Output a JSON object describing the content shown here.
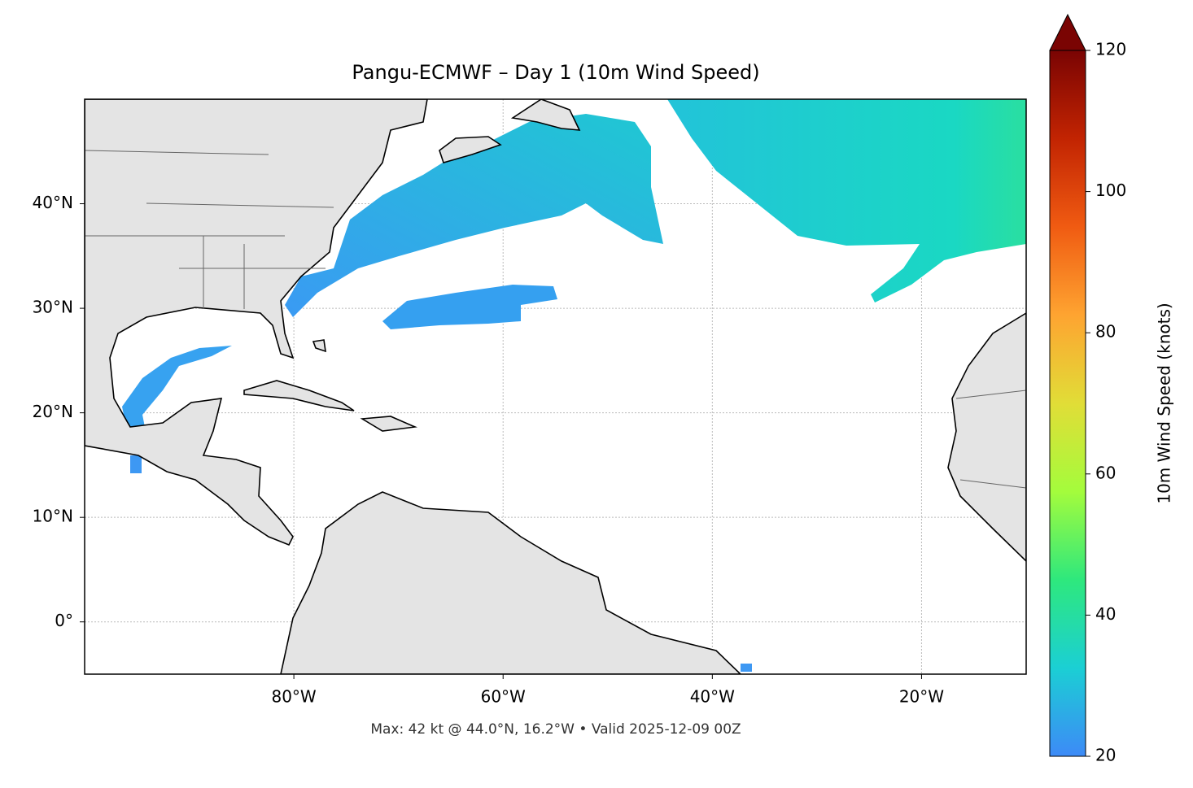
{
  "chart_data": {
    "type": "map",
    "title": "Pangu-ECMWF – Day 1 (10m Wind Speed)",
    "annotation": "Max: 42 kt @ 44.0°N, 16.2°W • Valid 2025-12-09 00Z",
    "xlim": [
      -100,
      -10
    ],
    "ylim": [
      -5,
      50
    ],
    "xticks": [
      {
        "value": -80,
        "label": "80°W"
      },
      {
        "value": -60,
        "label": "60°W"
      },
      {
        "value": -40,
        "label": "40°W"
      },
      {
        "value": -20,
        "label": "20°W"
      }
    ],
    "yticks": [
      {
        "value": 0,
        "label": "0°"
      },
      {
        "value": 10,
        "label": "10°N"
      },
      {
        "value": 20,
        "label": "20°N"
      },
      {
        "value": 30,
        "label": "30°N"
      },
      {
        "value": 40,
        "label": "40°N"
      }
    ],
    "grid": true,
    "colorbar": {
      "label": "10m Wind Speed (knots)",
      "lim": [
        20,
        120
      ],
      "ticks": [
        20,
        40,
        60,
        80,
        100,
        120
      ],
      "extend": "max",
      "colors": [
        "#3d8af7",
        "#1bcfd4",
        "#2ee87d",
        "#a4fc3c",
        "#e1dd37",
        "#fea431",
        "#f05b12",
        "#c22402",
        "#7a0403"
      ]
    }
  }
}
